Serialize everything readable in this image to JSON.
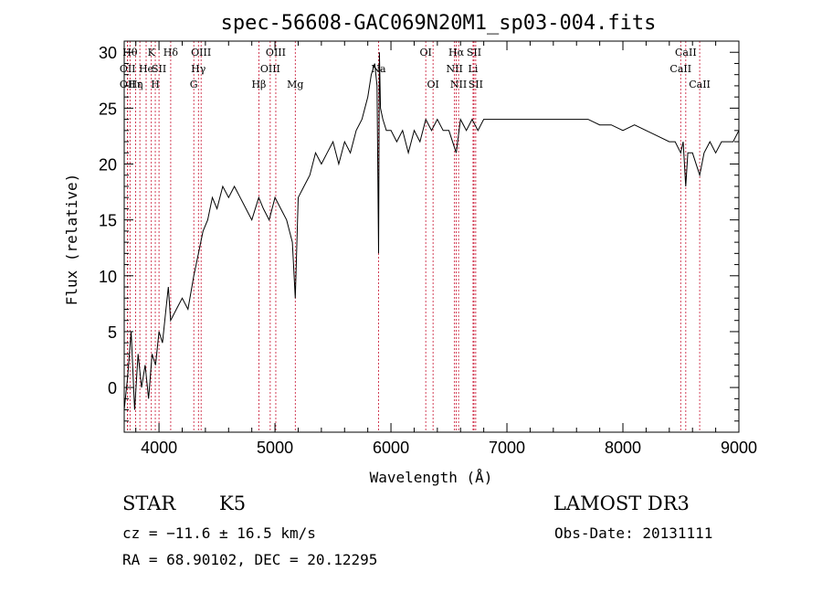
{
  "chart_data": {
    "type": "line",
    "title": "spec-56608-GAC069N20M1_sp03-004.fits",
    "xlabel": "Wavelength (Å)",
    "ylabel": "Flux (relative)",
    "xlim": [
      3700,
      9000
    ],
    "ylim": [
      -4,
      31
    ],
    "xticks": [
      4000,
      5000,
      6000,
      7000,
      8000,
      9000
    ],
    "yticks": [
      0,
      5,
      10,
      15,
      20,
      25,
      30
    ],
    "x_minor_step": 200,
    "y_minor_step": 1,
    "series": [
      {
        "name": "spectrum",
        "x": [
          3700,
          3730,
          3760,
          3790,
          3820,
          3850,
          3880,
          3910,
          3940,
          3970,
          4000,
          4030,
          4060,
          4080,
          4100,
          4150,
          4200,
          4250,
          4300,
          4340,
          4380,
          4420,
          4460,
          4500,
          4550,
          4600,
          4650,
          4700,
          4750,
          4800,
          4860,
          4900,
          4950,
          5000,
          5050,
          5100,
          5150,
          5175,
          5200,
          5250,
          5300,
          5350,
          5400,
          5450,
          5500,
          5550,
          5600,
          5650,
          5700,
          5750,
          5800,
          5830,
          5860,
          5880,
          5893,
          5900,
          5910,
          5930,
          5960,
          6000,
          6050,
          6100,
          6150,
          6200,
          6250,
          6300,
          6350,
          6400,
          6450,
          6500,
          6563,
          6600,
          6650,
          6700,
          6750,
          6800,
          6900,
          7000,
          7100,
          7200,
          7300,
          7400,
          7500,
          7600,
          7700,
          7800,
          7900,
          8000,
          8100,
          8200,
          8300,
          8400,
          8450,
          8498,
          8520,
          8542,
          8560,
          8600,
          8662,
          8700,
          8750,
          8800,
          8850,
          8900,
          8950,
          9000
        ],
        "values": [
          -2,
          1,
          5,
          -2,
          3,
          0,
          2,
          -1,
          3,
          2,
          5,
          4,
          7,
          9,
          6,
          7,
          8,
          7,
          10,
          12,
          14,
          15,
          17,
          16,
          18,
          17,
          18,
          17,
          16,
          15,
          17,
          16,
          15,
          17,
          16,
          15,
          13,
          8,
          17,
          18,
          19,
          21,
          20,
          21,
          22,
          20,
          22,
          21,
          23,
          24,
          26,
          28,
          29,
          27,
          12,
          30,
          25,
          24,
          23,
          23,
          22,
          23,
          21,
          23,
          22,
          24,
          23,
          24,
          23,
          23,
          21,
          24,
          23,
          24,
          23,
          24,
          24,
          24,
          24,
          24,
          24,
          24,
          24,
          24,
          24,
          23.5,
          23.5,
          23,
          23.5,
          23,
          22.5,
          22,
          22,
          21,
          22,
          18,
          21,
          21,
          19,
          21,
          22,
          21,
          22,
          22,
          22,
          23
        ]
      }
    ],
    "lines": [
      {
        "x": 3750,
        "label": "Hθ",
        "row": 0
      },
      {
        "x": 3729,
        "label": "OII",
        "row": 1
      },
      {
        "x": 3729,
        "label": "OII",
        "row": 2
      },
      {
        "x": 3798,
        "label": "Hε",
        "row": 2
      },
      {
        "x": 3835,
        "label": "η",
        "row": 2
      },
      {
        "x": 3889,
        "label": "He",
        "row": 1
      },
      {
        "x": 3934,
        "label": "K",
        "row": 0
      },
      {
        "x": 3968,
        "label": "H",
        "row": 2
      },
      {
        "x": 4000,
        "label": "SII",
        "row": 1
      },
      {
        "x": 4101,
        "label": "Hδ",
        "row": 0
      },
      {
        "x": 4300,
        "label": "G",
        "row": 2
      },
      {
        "x": 4340,
        "label": "Hγ",
        "row": 1
      },
      {
        "x": 4363,
        "label": "OIII",
        "row": 0
      },
      {
        "x": 4861,
        "label": "Hβ",
        "row": 2
      },
      {
        "x": 4959,
        "label": "OIII",
        "row": 1
      },
      {
        "x": 5007,
        "label": "OIII",
        "row": 0
      },
      {
        "x": 5175,
        "label": "Mg",
        "row": 2
      },
      {
        "x": 5893,
        "label": "Na",
        "row": 1
      },
      {
        "x": 6300,
        "label": "OI",
        "row": 0
      },
      {
        "x": 6363,
        "label": "OI",
        "row": 2
      },
      {
        "x": 6548,
        "label": "NII",
        "row": 1
      },
      {
        "x": 6563,
        "label": "Hα",
        "row": 0
      },
      {
        "x": 6583,
        "label": "NII",
        "row": 2
      },
      {
        "x": 6708,
        "label": "Li",
        "row": 1
      },
      {
        "x": 6716,
        "label": "SII",
        "row": 0
      },
      {
        "x": 6731,
        "label": "SII",
        "row": 2
      },
      {
        "x": 8498,
        "label": "CaII",
        "row": 1
      },
      {
        "x": 8542,
        "label": "CaII",
        "row": 0
      },
      {
        "x": 8662,
        "label": "CaII",
        "row": 2
      }
    ]
  },
  "info": {
    "object_class": "STAR",
    "subclass": "K5",
    "survey": "LAMOST DR3",
    "cz": "cz = −11.6 ± 16.5 km/s",
    "obs_date": "Obs-Date: 20131111",
    "coords": "RA =  68.90102, DEC =  20.12295"
  },
  "colors": {
    "axis": "#000000",
    "spectrum": "#000000",
    "line_marker": "#c8102e",
    "background": "#ffffff"
  }
}
